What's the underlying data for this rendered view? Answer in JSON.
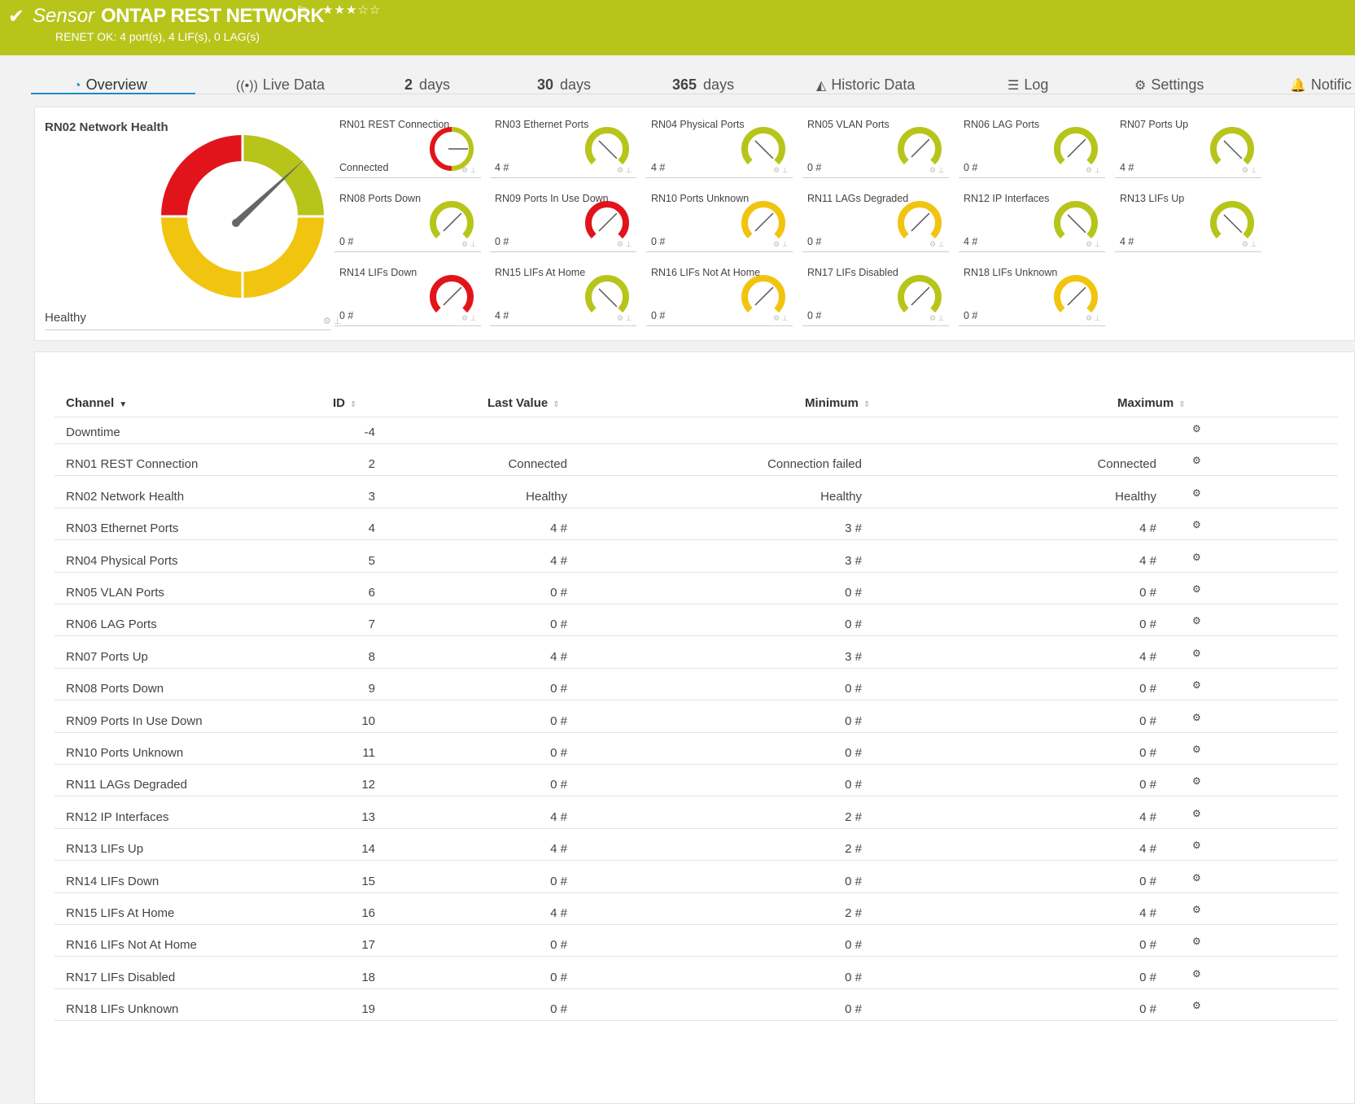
{
  "header": {
    "check_icon": "check-icon",
    "sensor_label": "Sensor",
    "name": "ONTAP REST NETWORK",
    "flag_icon": "flag-icon",
    "stars": "★★★☆☆",
    "status": "RENET OK: 4 port(s), 4 LIF(s), 0 LAG(s)"
  },
  "tabs": [
    {
      "label": "Overview",
      "icon": "gauge-icon",
      "active": true
    },
    {
      "label": "Live Data",
      "icon": "broadcast-icon"
    },
    {
      "num": "2",
      "label": "days"
    },
    {
      "num": "30",
      "label": "days"
    },
    {
      "num": "365",
      "label": "days"
    },
    {
      "label": "Historic Data",
      "icon": "area-chart-icon"
    },
    {
      "label": "Log",
      "icon": "list-icon"
    },
    {
      "label": "Settings",
      "icon": "gear-icon"
    },
    {
      "label": "Notific",
      "icon": "bell-icon"
    }
  ],
  "overview": {
    "big": {
      "title": "RN02 Network Health",
      "value": "Healthy"
    },
    "gauges": [
      {
        "title": "RN01 REST Connection",
        "value": "Connected",
        "color": "#b7c51b",
        "needle": 90,
        "mode": "split"
      },
      {
        "title": "RN03 Ethernet Ports",
        "value": "4 #",
        "color": "#b7c51b",
        "needle": 135
      },
      {
        "title": "RN04 Physical Ports",
        "value": "4 #",
        "color": "#b7c51b",
        "needle": 135
      },
      {
        "title": "RN05 VLAN Ports",
        "value": "0 #",
        "color": "#b7c51b",
        "needle": 45
      },
      {
        "title": "RN06 LAG Ports",
        "value": "0 #",
        "color": "#b7c51b",
        "needle": 45
      },
      {
        "title": "RN07 Ports Up",
        "value": "4 #",
        "color": "#b7c51b",
        "needle": 135
      },
      {
        "title": "RN08 Ports Down",
        "value": "0 #",
        "color": "#b7c51b",
        "needle": 45
      },
      {
        "title": "RN09 Ports In Use Down",
        "value": "0 #",
        "color": "#e2141b",
        "needle": 45
      },
      {
        "title": "RN10 Ports Unknown",
        "value": "0 #",
        "color": "#f1c40f",
        "needle": 45
      },
      {
        "title": "RN11 LAGs Degraded",
        "value": "0 #",
        "color": "#f1c40f",
        "needle": 45
      },
      {
        "title": "RN12 IP Interfaces",
        "value": "4 #",
        "color": "#b7c51b",
        "needle": 135
      },
      {
        "title": "RN13 LIFs Up",
        "value": "4 #",
        "color": "#b7c51b",
        "needle": 135
      },
      {
        "title": "RN14 LIFs Down",
        "value": "0 #",
        "color": "#e2141b",
        "needle": 45
      },
      {
        "title": "RN15 LIFs At Home",
        "value": "4 #",
        "color": "#b7c51b",
        "needle": 135
      },
      {
        "title": "RN16 LIFs Not At Home",
        "value": "0 #",
        "color": "#f1c40f",
        "needle": 45
      },
      {
        "title": "RN17 LIFs Disabled",
        "value": "0 #",
        "color": "#b7c51b",
        "needle": 45
      },
      {
        "title": "RN18 LIFs Unknown",
        "value": "0 #",
        "color": "#f1c40f",
        "needle": 45
      }
    ]
  },
  "table": {
    "headers": {
      "channel": "Channel",
      "id": "ID",
      "last": "Last Value",
      "min": "Minimum",
      "max": "Maximum"
    },
    "rows": [
      [
        "Downtime",
        "-4",
        "",
        "",
        ""
      ],
      [
        "RN01 REST Connection",
        "2",
        "Connected",
        "Connection failed",
        "Connected"
      ],
      [
        "RN02 Network Health",
        "3",
        "Healthy",
        "Healthy",
        "Healthy"
      ],
      [
        "RN03 Ethernet Ports",
        "4",
        "4 #",
        "3 #",
        "4 #"
      ],
      [
        "RN04 Physical Ports",
        "5",
        "4 #",
        "3 #",
        "4 #"
      ],
      [
        "RN05 VLAN Ports",
        "6",
        "0 #",
        "0 #",
        "0 #"
      ],
      [
        "RN06 LAG Ports",
        "7",
        "0 #",
        "0 #",
        "0 #"
      ],
      [
        "RN07 Ports Up",
        "8",
        "4 #",
        "3 #",
        "4 #"
      ],
      [
        "RN08 Ports Down",
        "9",
        "0 #",
        "0 #",
        "0 #"
      ],
      [
        "RN09 Ports In Use Down",
        "10",
        "0 #",
        "0 #",
        "0 #"
      ],
      [
        "RN10 Ports Unknown",
        "11",
        "0 #",
        "0 #",
        "0 #"
      ],
      [
        "RN11 LAGs Degraded",
        "12",
        "0 #",
        "0 #",
        "0 #"
      ],
      [
        "RN12 IP Interfaces",
        "13",
        "4 #",
        "2 #",
        "4 #"
      ],
      [
        "RN13 LIFs Up",
        "14",
        "4 #",
        "2 #",
        "4 #"
      ],
      [
        "RN14 LIFs Down",
        "15",
        "0 #",
        "0 #",
        "0 #"
      ],
      [
        "RN15 LIFs At Home",
        "16",
        "4 #",
        "2 #",
        "4 #"
      ],
      [
        "RN16 LIFs Not At Home",
        "17",
        "0 #",
        "0 #",
        "0 #"
      ],
      [
        "RN17 LIFs Disabled",
        "18",
        "0 #",
        "0 #",
        "0 #"
      ],
      [
        "RN18 LIFs Unknown",
        "19",
        "0 #",
        "0 #",
        "0 #"
      ]
    ]
  }
}
